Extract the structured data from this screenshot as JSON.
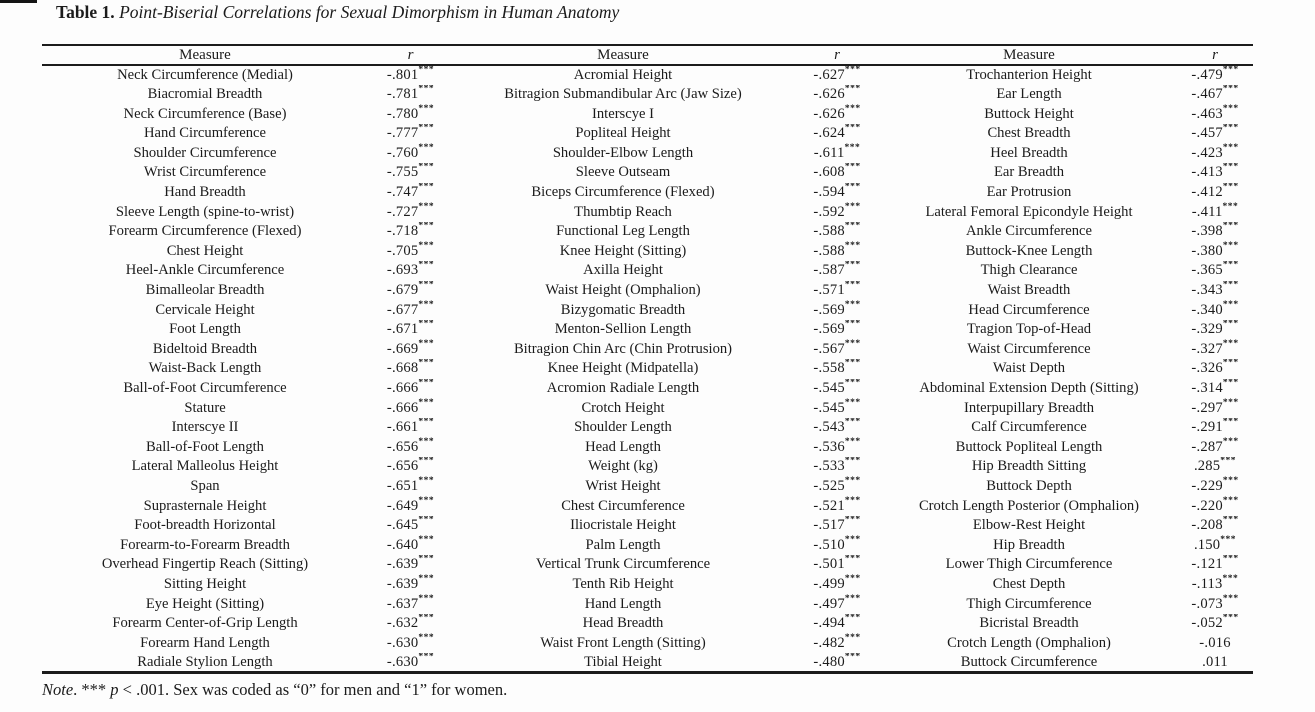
{
  "page": {
    "title_label": "Table 1.",
    "title_text": "Point-Biserial Correlations for Sexual Dimorphism in Human Anatomy"
  },
  "table": {
    "headers": {
      "measure": "Measure",
      "r": "r"
    },
    "sig_marker": "***",
    "groups": [
      {
        "rows": [
          [
            "Neck Circumference (Medial)",
            "-.801",
            "***"
          ],
          [
            "Biacromial Breadth",
            "-.781",
            "***"
          ],
          [
            "Neck Circumference (Base)",
            "-.780",
            "***"
          ],
          [
            "Hand Circumference",
            "-.777",
            "***"
          ],
          [
            "Shoulder Circumference",
            "-.760",
            "***"
          ],
          [
            "Wrist Circumference",
            "-.755",
            "***"
          ],
          [
            "Hand Breadth",
            "-.747",
            "***"
          ],
          [
            "Sleeve Length (spine-to-wrist)",
            "-.727",
            "***"
          ],
          [
            "Forearm Circumference (Flexed)",
            "-.718",
            "***"
          ],
          [
            "Chest Height",
            "-.705",
            "***"
          ],
          [
            "Heel-Ankle Circumference",
            "-.693",
            "***"
          ],
          [
            "Bimalleolar Breadth",
            "-.679",
            "***"
          ],
          [
            "Cervicale Height",
            "-.677",
            "***"
          ],
          [
            "Foot Length",
            "-.671",
            "***"
          ],
          [
            "Bideltoid Breadth",
            "-.669",
            "***"
          ],
          [
            "Waist-Back Length",
            "-.668",
            "***"
          ],
          [
            "Ball-of-Foot Circumference",
            "-.666",
            "***"
          ],
          [
            "Stature",
            "-.666",
            "***"
          ],
          [
            "Interscye II",
            "-.661",
            "***"
          ],
          [
            "Ball-of-Foot Length",
            "-.656",
            "***"
          ],
          [
            "Lateral Malleolus Height",
            "-.656",
            "***"
          ],
          [
            "Span",
            "-.651",
            "***"
          ],
          [
            "Suprasternale Height",
            "-.649",
            "***"
          ],
          [
            "Foot-breadth Horizontal",
            "-.645",
            "***"
          ],
          [
            "Forearm-to-Forearm Breadth",
            "-.640",
            "***"
          ],
          [
            "Overhead Fingertip Reach (Sitting)",
            "-.639",
            "***"
          ],
          [
            "Sitting Height",
            "-.639",
            "***"
          ],
          [
            "Eye Height (Sitting)",
            "-.637",
            "***"
          ],
          [
            "Forearm Center-of-Grip Length",
            "-.632",
            "***"
          ],
          [
            "Forearm Hand Length",
            "-.630",
            "***"
          ],
          [
            "Radiale Stylion Length",
            "-.630",
            "***"
          ]
        ]
      },
      {
        "rows": [
          [
            "Acromial Height",
            "-.627",
            "***"
          ],
          [
            "Bitragion Submandibular Arc (Jaw Size)",
            "-.626",
            "***"
          ],
          [
            "Interscye I",
            "-.626",
            "***"
          ],
          [
            "Popliteal Height",
            "-.624",
            "***"
          ],
          [
            "Shoulder-Elbow Length",
            "-.611",
            "***"
          ],
          [
            "Sleeve Outseam",
            "-.608",
            "***"
          ],
          [
            "Biceps Circumference (Flexed)",
            "-.594",
            "***"
          ],
          [
            "Thumbtip Reach",
            "-.592",
            "***"
          ],
          [
            "Functional Leg Length",
            "-.588",
            "***"
          ],
          [
            "Knee Height (Sitting)",
            "-.588",
            "***"
          ],
          [
            "Axilla Height",
            "-.587",
            "***"
          ],
          [
            "Waist Height (Omphalion)",
            "-.571",
            "***"
          ],
          [
            "Bizygomatic Breadth",
            "-.569",
            "***"
          ],
          [
            "Menton-Sellion Length",
            "-.569",
            "***"
          ],
          [
            "Bitragion Chin Arc (Chin Protrusion)",
            "-.567",
            "***"
          ],
          [
            "Knee Height (Midpatella)",
            "-.558",
            "***"
          ],
          [
            "Acromion Radiale Length",
            "-.545",
            "***"
          ],
          [
            "Crotch Height",
            "-.545",
            "***"
          ],
          [
            "Shoulder Length",
            "-.543",
            "***"
          ],
          [
            "Head Length",
            "-.536",
            "***"
          ],
          [
            "Weight (kg)",
            "-.533",
            "***"
          ],
          [
            "Wrist Height",
            "-.525",
            "***"
          ],
          [
            "Chest Circumference",
            "-.521",
            "***"
          ],
          [
            "Iliocristale Height",
            "-.517",
            "***"
          ],
          [
            "Palm Length",
            "-.510",
            "***"
          ],
          [
            "Vertical Trunk Circumference",
            "-.501",
            "***"
          ],
          [
            "Tenth Rib Height",
            "-.499",
            "***"
          ],
          [
            "Hand Length",
            "-.497",
            "***"
          ],
          [
            "Head Breadth",
            "-.494",
            "***"
          ],
          [
            "Waist Front Length (Sitting)",
            "-.482",
            "***"
          ],
          [
            "Tibial Height",
            "-.480",
            "***"
          ]
        ]
      },
      {
        "rows": [
          [
            "Trochanterion Height",
            "-.479",
            "***"
          ],
          [
            "Ear Length",
            "-.467",
            "***"
          ],
          [
            "Buttock Height",
            "-.463",
            "***"
          ],
          [
            "Chest Breadth",
            "-.457",
            "***"
          ],
          [
            "Heel Breadth",
            "-.423",
            "***"
          ],
          [
            "Ear Breadth",
            "-.413",
            "***"
          ],
          [
            "Ear Protrusion",
            "-.412",
            "***"
          ],
          [
            "Lateral Femoral Epicondyle Height",
            "-.411",
            "***"
          ],
          [
            "Ankle Circumference",
            "-.398",
            "***"
          ],
          [
            "Buttock-Knee Length",
            "-.380",
            "***"
          ],
          [
            "Thigh Clearance",
            "-.365",
            "***"
          ],
          [
            "Waist Breadth",
            "-.343",
            "***"
          ],
          [
            "Head Circumference",
            "-.340",
            "***"
          ],
          [
            "Tragion Top-of-Head",
            "-.329",
            "***"
          ],
          [
            "Waist Circumference",
            "-.327",
            "***"
          ],
          [
            "Waist Depth",
            "-.326",
            "***"
          ],
          [
            "Abdominal Extension Depth (Sitting)",
            "-.314",
            "***"
          ],
          [
            "Interpupillary Breadth",
            "-.297",
            "***"
          ],
          [
            "Calf Circumference",
            "-.291",
            "***"
          ],
          [
            "Buttock Popliteal Length",
            "-.287",
            "***"
          ],
          [
            "Hip Breadth Sitting",
            ".285",
            "***"
          ],
          [
            "Buttock Depth",
            "-.229",
            "***"
          ],
          [
            "Crotch Length Posterior (Omphalion)",
            "-.220",
            "***"
          ],
          [
            "Elbow-Rest Height",
            "-.208",
            "***"
          ],
          [
            "Hip Breadth",
            ".150",
            "***"
          ],
          [
            "Lower Thigh Circumference",
            "-.121",
            "***"
          ],
          [
            "Chest Depth",
            "-.113",
            "***"
          ],
          [
            "Thigh Circumference",
            "-.073",
            "***"
          ],
          [
            "Bicristal Breadth",
            "-.052",
            "***"
          ],
          [
            "Crotch Length (Omphalion)",
            "-.016",
            ""
          ],
          [
            "Buttock Circumference",
            ".011",
            ""
          ]
        ]
      }
    ]
  },
  "note": {
    "label": "Note",
    "after_label": ". ",
    "stars": "*** ",
    "p": "p",
    "rest": " < .001. Sex was coded as “0” for men and “1” for women."
  }
}
